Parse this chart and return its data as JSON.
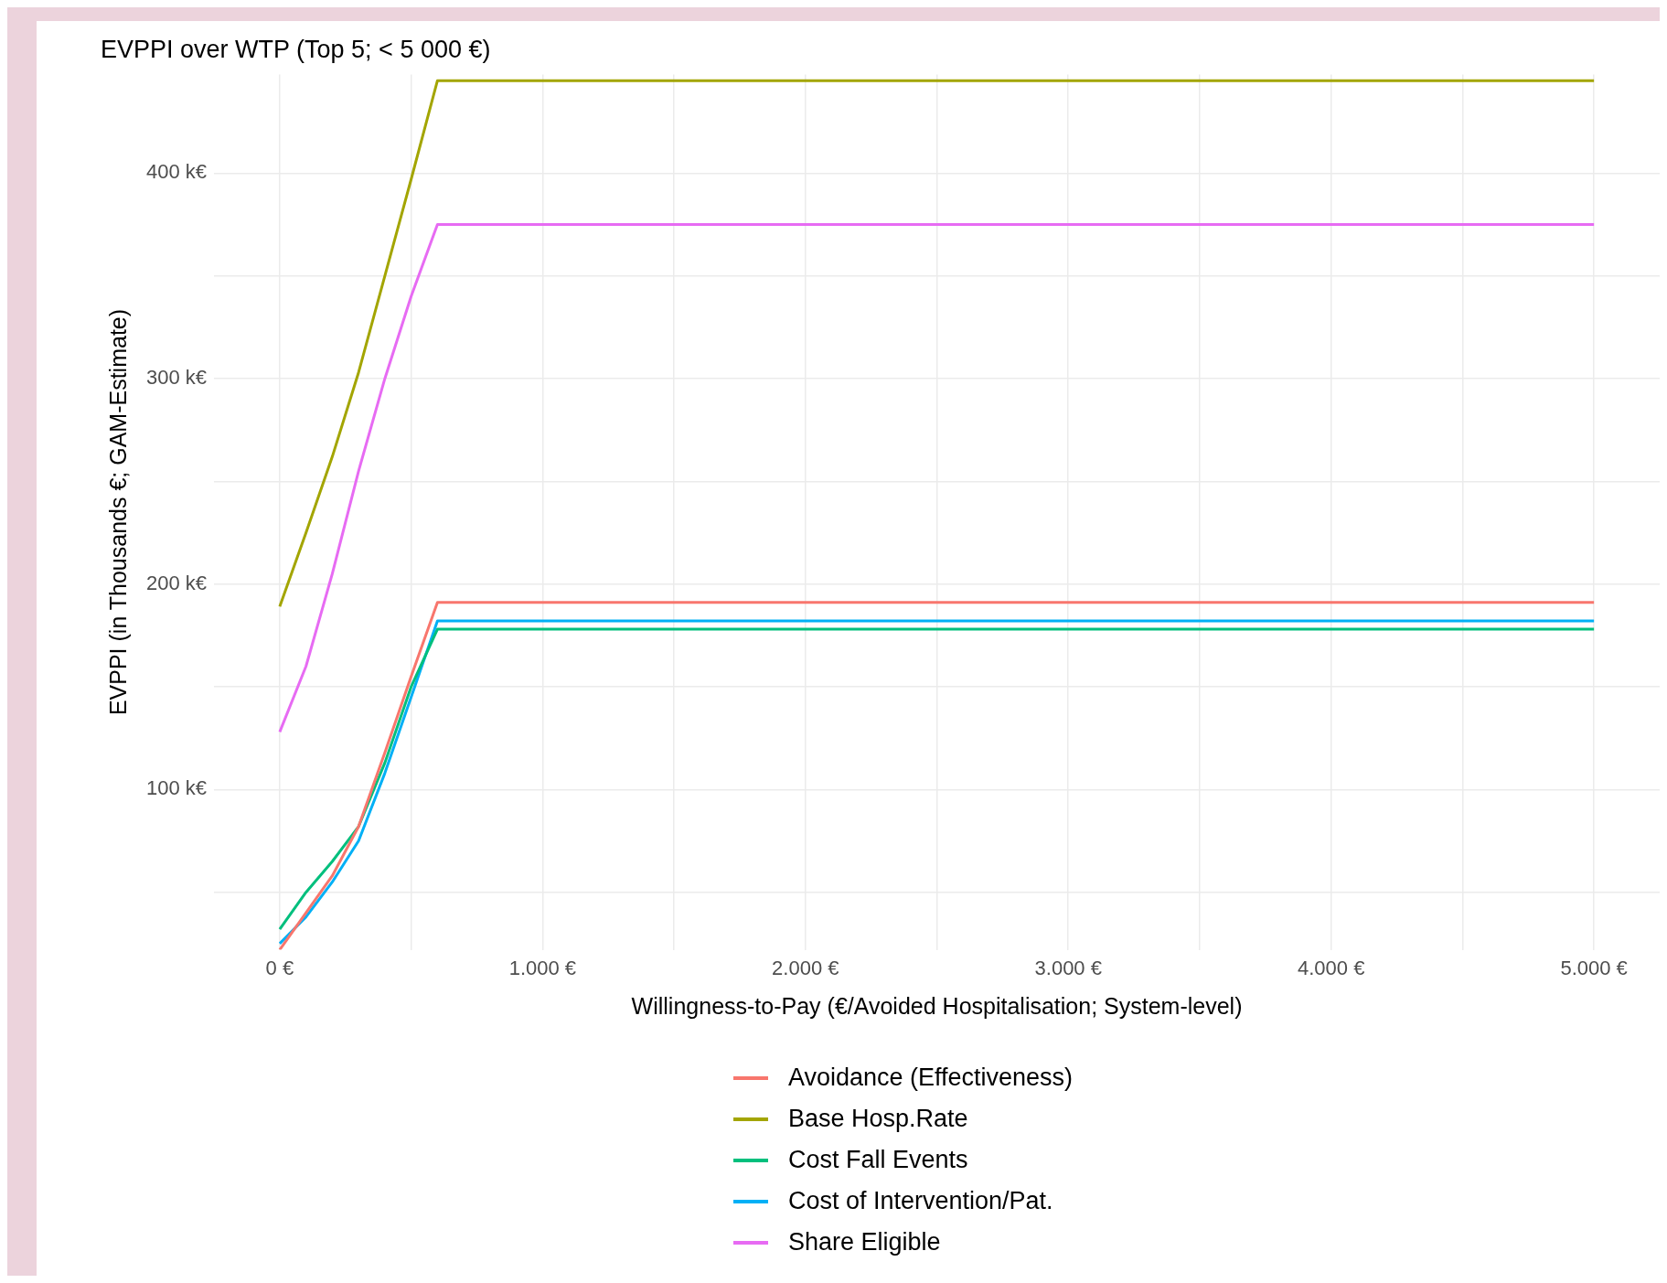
{
  "chart_data": {
    "type": "line",
    "title": "EVPPI over WTP (Top 5; < 5 000 €)",
    "xlabel": "Willingness-to-Pay (€/Avoided Hospitalisation; System-level)",
    "ylabel": "EVPPI (in Thousands €; GAM-Estimate)",
    "x": [
      0,
      100,
      200,
      300,
      400,
      500,
      600,
      5000
    ],
    "series": [
      {
        "name": "Avoidance (Effectiveness)",
        "color": "#f8766d",
        "values": [
          22,
          40,
          58,
          82,
          118,
          155,
          191,
          191
        ]
      },
      {
        "name": "Base Hosp.Rate",
        "color": "#a3a500",
        "values": [
          189,
          225,
          262,
          303,
          350,
          397,
          445,
          445
        ]
      },
      {
        "name": "Cost Fall Events",
        "color": "#00bf7d",
        "values": [
          32,
          50,
          65,
          82,
          113,
          150,
          178,
          178
        ]
      },
      {
        "name": "Cost of Intervention/Pat.",
        "color": "#00b0f6",
        "values": [
          25,
          38,
          55,
          75,
          108,
          145,
          182,
          182
        ]
      },
      {
        "name": "Share Eligible",
        "color": "#e76bf3",
        "values": [
          128,
          160,
          205,
          255,
          300,
          340,
          375,
          375
        ]
      }
    ],
    "xlim": [
      -250,
      5250
    ],
    "ylim": [
      22,
      448
    ],
    "xticks": [
      {
        "value": 0,
        "label": "0 €"
      },
      {
        "value": 500,
        "label": null
      },
      {
        "value": 1000,
        "label": "1.000 €"
      },
      {
        "value": 1500,
        "label": null
      },
      {
        "value": 2000,
        "label": "2.000 €"
      },
      {
        "value": 2500,
        "label": null
      },
      {
        "value": 3000,
        "label": "3.000 €"
      },
      {
        "value": 3500,
        "label": null
      },
      {
        "value": 4000,
        "label": "4.000 €"
      },
      {
        "value": 4500,
        "label": null
      },
      {
        "value": 5000,
        "label": "5.000 €"
      }
    ],
    "yticks": [
      {
        "value": 50,
        "label": null
      },
      {
        "value": 100,
        "label": "100 k€"
      },
      {
        "value": 150,
        "label": null
      },
      {
        "value": 200,
        "label": "200 k€"
      },
      {
        "value": 250,
        "label": null
      },
      {
        "value": 300,
        "label": "300 k€"
      },
      {
        "value": 350,
        "label": null
      },
      {
        "value": 400,
        "label": "400 k€"
      }
    ],
    "grid": true,
    "legend": "bottom",
    "marker": "none",
    "line_style": "solid"
  }
}
